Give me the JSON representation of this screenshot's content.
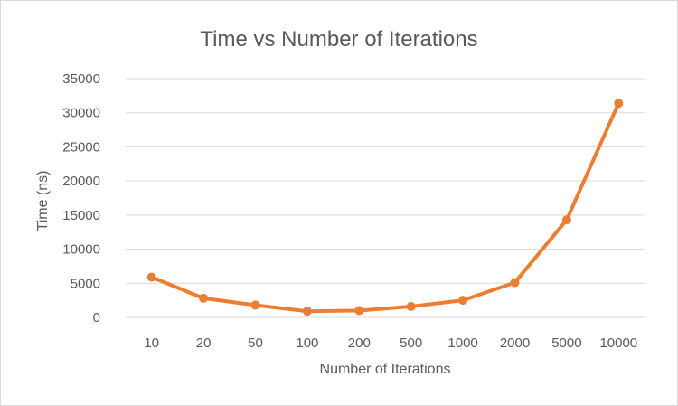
{
  "chart_data": {
    "type": "line",
    "title": "Time vs Number of Iterations",
    "xlabel": "Number of Iterations",
    "ylabel": "Time (ns)",
    "categories": [
      "10",
      "20",
      "50",
      "100",
      "200",
      "500",
      "1000",
      "2000",
      "5000",
      "10000"
    ],
    "series": [
      {
        "color": "#ed7d31",
        "values": [
          5900,
          2800,
          1800,
          900,
          1000,
          1600,
          2500,
          5100,
          14300,
          31400
        ]
      }
    ],
    "ylim": [
      0,
      35000
    ],
    "yticks": [
      0,
      5000,
      10000,
      15000,
      20000,
      25000,
      30000,
      35000
    ],
    "grid": true,
    "legend": "none"
  }
}
